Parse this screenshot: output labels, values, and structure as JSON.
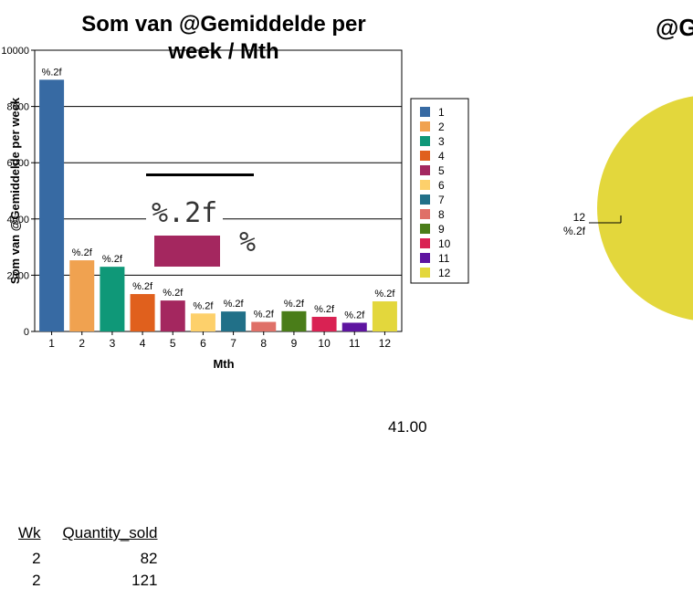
{
  "chart_data": [
    {
      "type": "bar",
      "title": "Som van @Gemiddelde per week / Mth",
      "xlabel": "Mth",
      "ylabel": "Som van @Gemiddelde per week",
      "ylim": [
        0,
        10000
      ],
      "yticks": [
        "0",
        "2000",
        "4000",
        "6000",
        "8000",
        "10000"
      ],
      "categories": [
        "1",
        "2",
        "3",
        "4",
        "5",
        "6",
        "7",
        "8",
        "9",
        "10",
        "11",
        "12"
      ],
      "values": [
        8950,
        2530,
        2300,
        1330,
        1100,
        640,
        710,
        340,
        720,
        520,
        310,
        1070
      ],
      "data_labels": [
        "%.2f",
        "%.2f",
        "%.2f",
        "%.2f",
        "%.2f",
        "%.2f",
        "%.2f",
        "%.2f",
        "%.2f",
        "%.2f",
        "%.2f",
        "%.2f"
      ],
      "colors": [
        "#376aa3",
        "#f0a250",
        "#0f9878",
        "#e0601d",
        "#a4275f",
        "#fdd06b",
        "#217088",
        "#df7068",
        "#4a7d19",
        "#d92253",
        "#5e14a0",
        "#e3d73c"
      ],
      "grid": true,
      "legend": {
        "placement": "right",
        "entries": [
          "1",
          "2",
          "3",
          "4",
          "5",
          "6",
          "7",
          "8",
          "9",
          "10",
          "11",
          "12"
        ]
      }
    },
    {
      "type": "pie",
      "title": "@G",
      "categories": [
        "12"
      ],
      "slice_label": "12",
      "slice_value_label": "%.2f",
      "colors": [
        "#e3d73c"
      ]
    }
  ],
  "tooltip": {
    "value": "%.2f",
    "percent": "%",
    "color": "#a4275f"
  },
  "summary": {
    "value": "41.00"
  },
  "table": {
    "headers": [
      "Wk",
      "Quantity_sold"
    ],
    "rows": [
      [
        "2",
        "82"
      ],
      [
        "2",
        "121"
      ]
    ]
  }
}
